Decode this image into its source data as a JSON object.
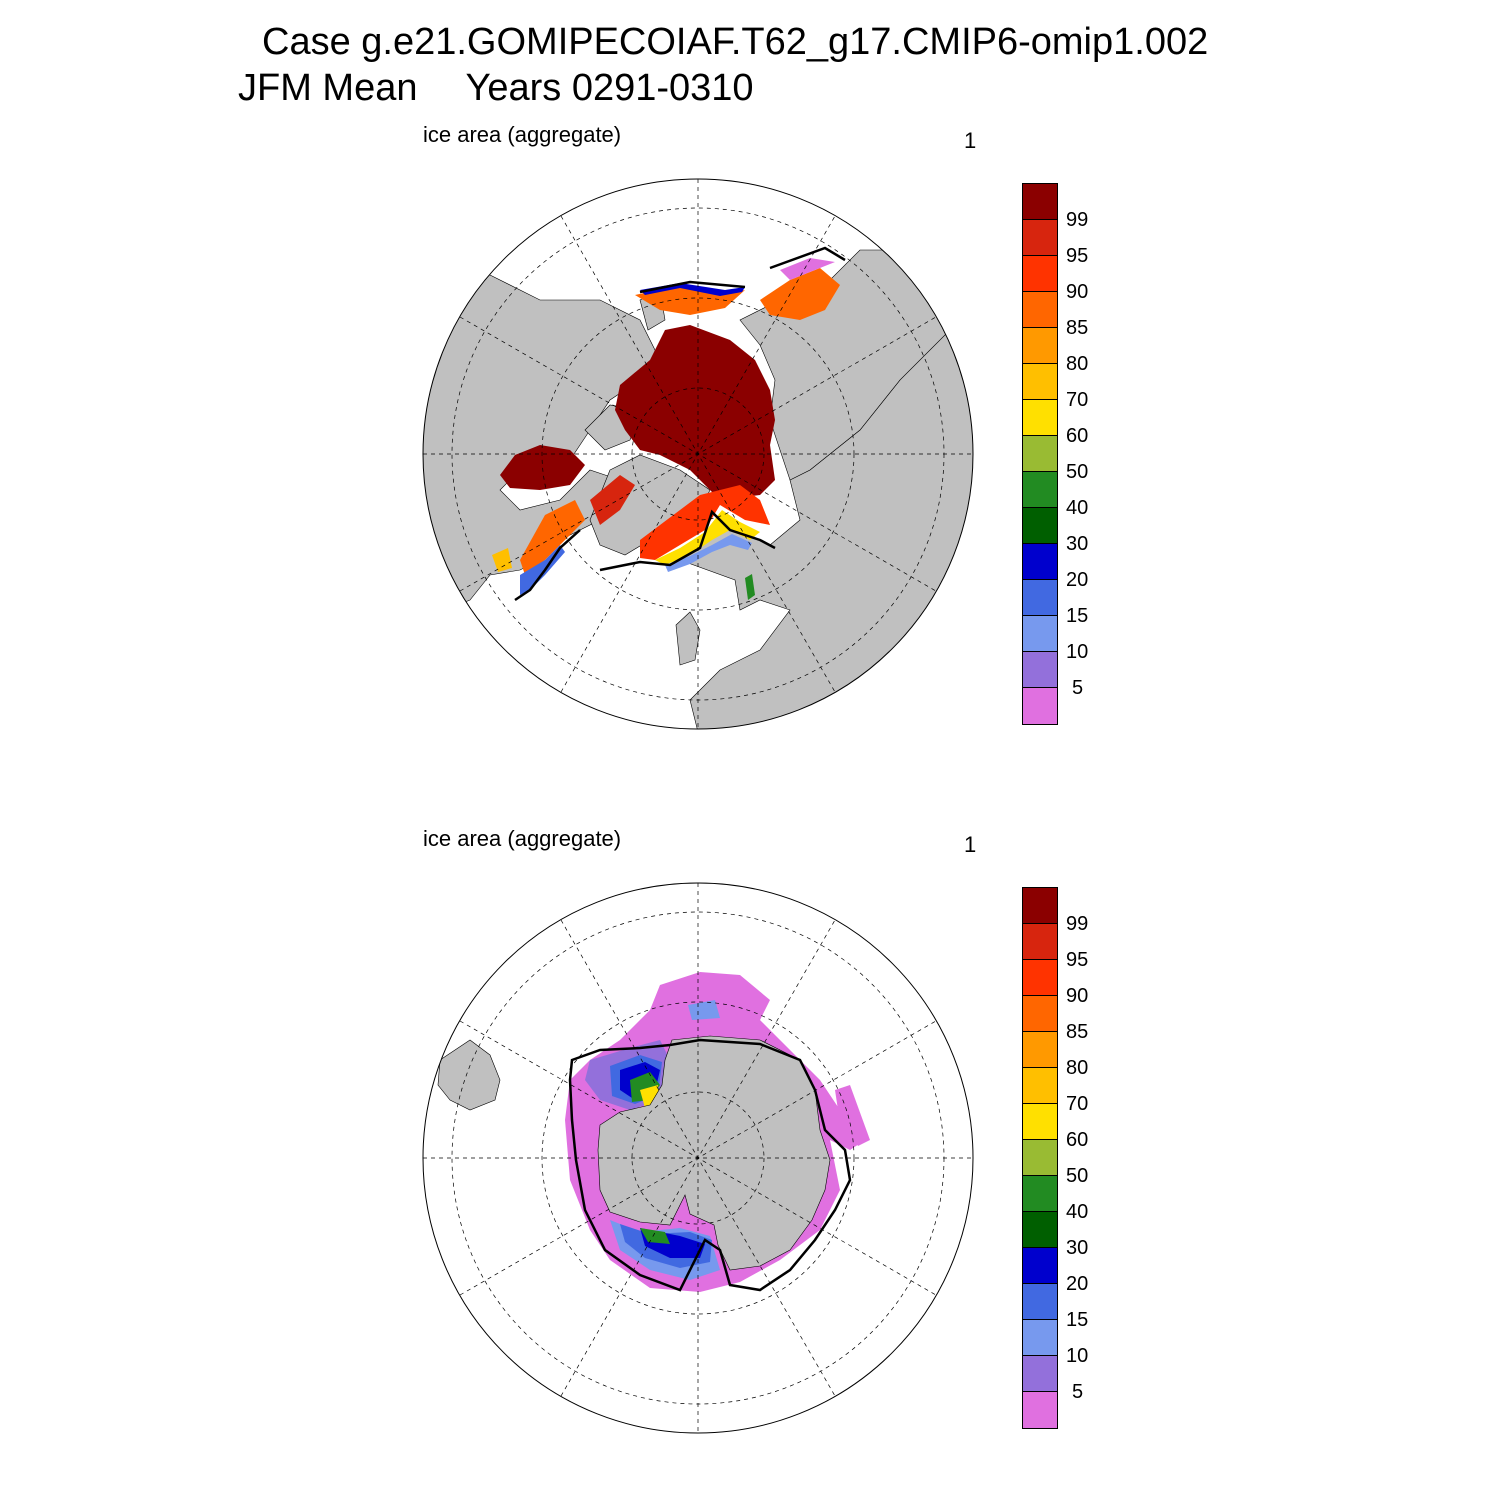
{
  "title": {
    "line1": "Case g.e21.GOMIPECOIAF.T62_g17.CMIP6-omip1.002",
    "season": "JFM Mean",
    "years": "Years 0291-0310"
  },
  "panels": [
    {
      "id": "north",
      "label": "ice area  (aggregate)",
      "number": "1",
      "hemisphere": "Northern"
    },
    {
      "id": "south",
      "label": "ice area  (aggregate)",
      "number": "1",
      "hemisphere": "Southern"
    }
  ],
  "legend": {
    "labels": [
      "99",
      "95",
      "90",
      "85",
      "80",
      "70",
      "60",
      "50",
      "40",
      "30",
      "20",
      "15",
      "10",
      "5"
    ],
    "colors": [
      "#8b0000",
      "#d7250e",
      "#ff3300",
      "#ff6600",
      "#ff9900",
      "#ffbf00",
      "#ffe000",
      "#99bb33",
      "#228b22",
      "#005f00",
      "#0000cd",
      "#4169e1",
      "#7799ee",
      "#9370db",
      "#e070e0"
    ]
  },
  "colors": {
    "land": "#c0c0c0",
    "ocean": "#ffffff",
    "grid": "#000000",
    "obs_edge": "#000000"
  }
}
